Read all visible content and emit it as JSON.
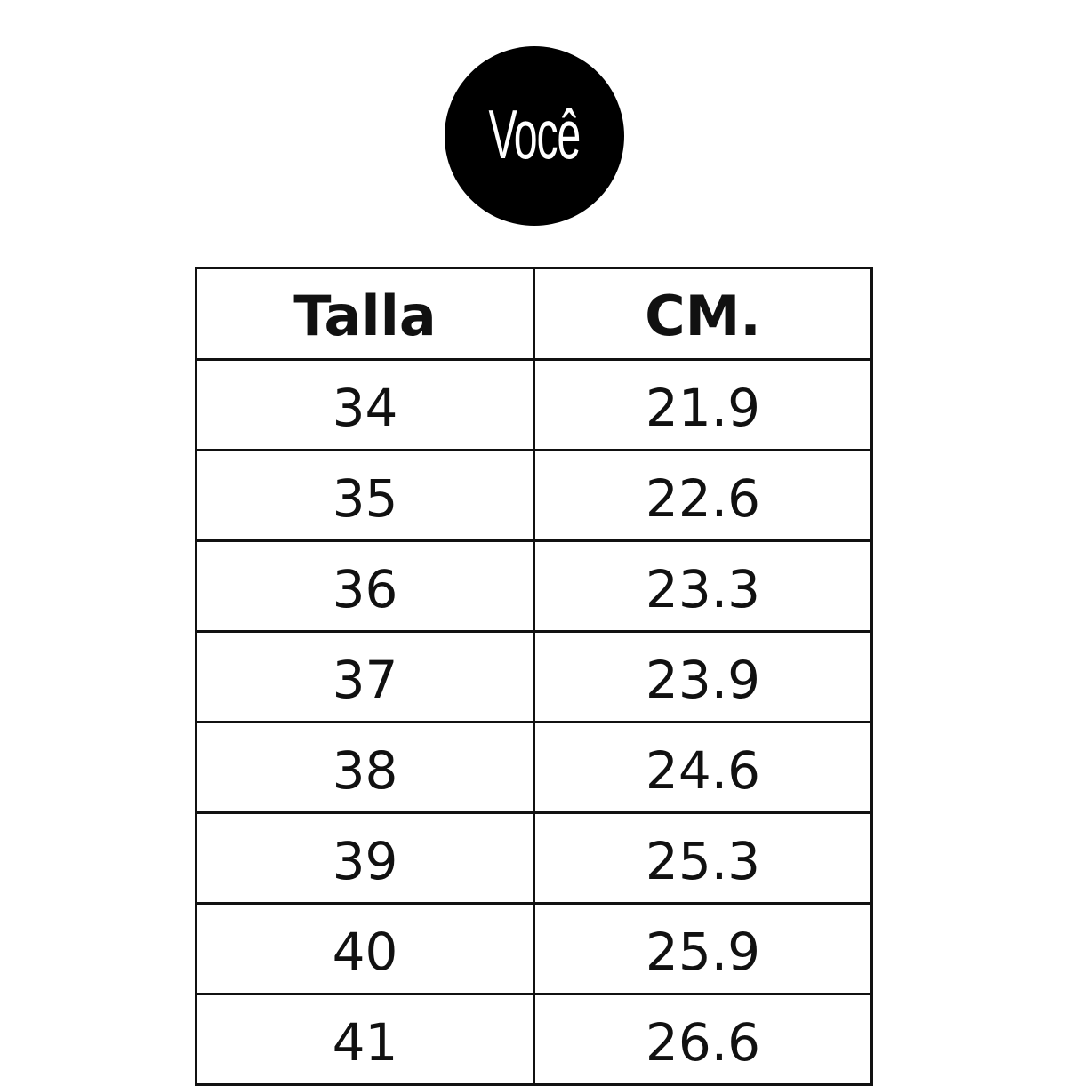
{
  "logo": {
    "text": "Você"
  },
  "table": {
    "headers": [
      "Talla",
      "CM."
    ],
    "rows": [
      [
        "34",
        "21.9"
      ],
      [
        "35",
        "22.6"
      ],
      [
        "36",
        "23.3"
      ],
      [
        "37",
        "23.9"
      ],
      [
        "38",
        "24.6"
      ],
      [
        "39",
        "25.3"
      ],
      [
        "40",
        "25.9"
      ],
      [
        "41",
        "26.6"
      ]
    ]
  }
}
